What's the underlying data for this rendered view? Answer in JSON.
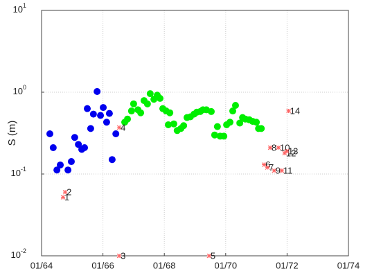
{
  "chart_data": {
    "type": "scatter",
    "y_label": "S (m)",
    "log_y": true,
    "grid": true,
    "xlim": [
      1964,
      1974
    ],
    "ylim": [
      0.01,
      10
    ],
    "xticks": [
      {
        "value": 1964,
        "label": "01/64"
      },
      {
        "value": 1966,
        "label": "01/66"
      },
      {
        "value": 1968,
        "label": "01/68"
      },
      {
        "value": 1970,
        "label": "01/70"
      },
      {
        "value": 1972,
        "label": "01/72"
      },
      {
        "value": 1974,
        "label": "01/74"
      }
    ],
    "yticks": [
      {
        "value": 0.01,
        "label": "10",
        "exponent": "-2"
      },
      {
        "value": 0.1,
        "label": "10",
        "exponent": "-1"
      },
      {
        "value": 1,
        "label": "10",
        "exponent": "0"
      },
      {
        "value": 10,
        "label": "10",
        "exponent": "1"
      }
    ],
    "series": [
      {
        "color": "#0000ee",
        "marker": "dot",
        "x": [
          1964.27,
          1964.38,
          1964.5,
          1964.61,
          1964.86,
          1964.97,
          1965.08,
          1965.2,
          1965.31,
          1965.4,
          1965.49,
          1965.6,
          1965.69,
          1965.81,
          1965.92,
          1966.01,
          1966.12,
          1966.21,
          1966.3,
          1966.42
        ],
        "values": [
          0.31,
          0.21,
          0.112,
          0.129,
          0.112,
          0.142,
          0.28,
          0.23,
          0.2,
          0.21,
          0.63,
          0.36,
          0.54,
          1.02,
          0.52,
          0.65,
          0.43,
          0.55,
          0.15,
          0.31
        ]
      },
      {
        "color": "#00ee00",
        "marker": "dot",
        "x": [
          1966.71,
          1966.8,
          1966.93,
          1967.0,
          1967.14,
          1967.23,
          1967.34,
          1967.45,
          1967.54,
          1967.66,
          1967.77,
          1967.86,
          1967.95,
          1968.06,
          1968.18,
          1968.13,
          1968.31,
          1968.42,
          1968.54,
          1968.63,
          1968.74,
          1968.85,
          1968.97,
          1969.06,
          1969.17,
          1969.26,
          1969.37,
          1969.53,
          1969.64,
          1969.73,
          1969.82,
          1969.94,
          1970.03,
          1970.14,
          1970.23,
          1970.32,
          1970.46,
          1970.55,
          1970.64,
          1970.77,
          1970.88,
          1971.0,
          1971.07,
          1971.16
        ],
        "values": [
          0.43,
          0.47,
          0.59,
          0.72,
          0.61,
          0.56,
          0.79,
          0.72,
          0.96,
          0.82,
          0.92,
          0.84,
          0.63,
          0.59,
          0.56,
          0.4,
          0.41,
          0.34,
          0.36,
          0.39,
          0.49,
          0.5,
          0.54,
          0.57,
          0.58,
          0.61,
          0.61,
          0.58,
          0.3,
          0.38,
          0.29,
          0.29,
          0.4,
          0.43,
          0.59,
          0.69,
          0.42,
          0.49,
          0.47,
          0.46,
          0.44,
          0.43,
          0.36,
          0.36
        ]
      },
      {
        "color": "#ff6060",
        "marker": "star",
        "x": [
          1964.7,
          1964.77,
          1966.53,
          1966.53,
          1969.46,
          1971.25,
          1971.36,
          1971.45,
          1971.58,
          1971.72,
          1971.83,
          1971.92,
          1971.99,
          1972.05
        ],
        "values": [
          0.052,
          0.06,
          0.01,
          0.37,
          0.01,
          0.13,
          0.12,
          0.21,
          0.11,
          0.21,
          0.11,
          0.18,
          0.19,
          0.59
        ],
        "point_labels": [
          "1",
          "2",
          "3",
          "4",
          "5",
          "6",
          "7",
          "8",
          "9",
          "10",
          "11",
          "12",
          "13",
          "14"
        ]
      }
    ]
  }
}
